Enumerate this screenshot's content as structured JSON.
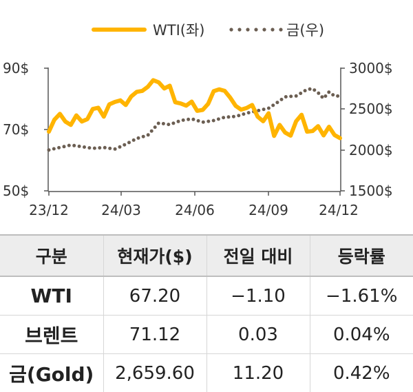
{
  "chart_data": {
    "type": "line",
    "legend": [
      "WTI(좌)",
      "금(우)"
    ],
    "legend_position": "top",
    "x_ticks": [
      "23/12",
      "24/03",
      "24/06",
      "24/09",
      "24/12"
    ],
    "y_left_ticks": [
      "90$",
      "70$",
      "50$"
    ],
    "y_right_ticks": [
      "3000$",
      "2500$",
      "2000$",
      "1500$"
    ],
    "y_left_range": [
      50,
      90
    ],
    "y_right_range": [
      1500,
      3000
    ],
    "x_range": [
      "2023-12-01",
      "2024-12-06"
    ],
    "colors": {
      "wti": "#ffb400",
      "gold": "#6b5e52"
    },
    "series": [
      {
        "name": "WTI(좌)",
        "axis": "left",
        "style": "solid",
        "x": [
          "2023-12-01",
          "2023-12-08",
          "2023-12-15",
          "2023-12-22",
          "2023-12-29",
          "2024-01-05",
          "2024-01-12",
          "2024-01-19",
          "2024-01-26",
          "2024-02-02",
          "2024-02-09",
          "2024-02-16",
          "2024-02-23",
          "2024-03-01",
          "2024-03-08",
          "2024-03-15",
          "2024-03-22",
          "2024-03-29",
          "2024-04-05",
          "2024-04-12",
          "2024-04-19",
          "2024-04-26",
          "2024-05-03",
          "2024-05-10",
          "2024-05-17",
          "2024-05-24",
          "2024-05-31",
          "2024-06-07",
          "2024-06-14",
          "2024-06-21",
          "2024-06-28",
          "2024-07-05",
          "2024-07-12",
          "2024-07-19",
          "2024-07-26",
          "2024-08-02",
          "2024-08-09",
          "2024-08-16",
          "2024-08-23",
          "2024-08-30",
          "2024-09-06",
          "2024-09-13",
          "2024-09-20",
          "2024-09-27",
          "2024-10-04",
          "2024-10-11",
          "2024-10-18",
          "2024-10-25",
          "2024-11-01",
          "2024-11-08",
          "2024-11-15",
          "2024-11-22",
          "2024-11-29",
          "2024-12-06"
        ],
        "values": [
          69.3,
          73.2,
          75.1,
          72.6,
          71.5,
          74.6,
          72.6,
          73.4,
          76.7,
          77.1,
          74.2,
          78.2,
          79.0,
          79.5,
          78.0,
          80.8,
          82.3,
          82.6,
          83.9,
          86.1,
          85.4,
          83.4,
          84.3,
          78.9,
          78.5,
          77.8,
          79.1,
          76.1,
          76.4,
          78.4,
          82.5,
          83.1,
          82.6,
          80.4,
          77.7,
          76.5,
          77.0,
          78.0,
          74.2,
          72.7,
          75.3,
          67.9,
          71.5,
          69.0,
          68.0,
          72.7,
          74.8,
          69.3,
          69.5,
          71.1,
          68.1,
          70.9,
          68.2,
          67.2
        ]
      },
      {
        "name": "금(우)",
        "axis": "right",
        "style": "dotted",
        "x": [
          "2023-12-01",
          "2023-12-15",
          "2023-12-29",
          "2024-01-12",
          "2024-01-26",
          "2024-02-09",
          "2024-02-23",
          "2024-03-08",
          "2024-03-22",
          "2024-04-05",
          "2024-04-19",
          "2024-05-03",
          "2024-05-17",
          "2024-05-31",
          "2024-06-14",
          "2024-06-28",
          "2024-07-12",
          "2024-07-26",
          "2024-08-09",
          "2024-08-23",
          "2024-09-06",
          "2024-09-20",
          "2024-09-27",
          "2024-10-11",
          "2024-10-18",
          "2024-10-25",
          "2024-11-01",
          "2024-11-08",
          "2024-11-15",
          "2024-11-22",
          "2024-11-29",
          "2024-12-06"
        ],
        "values": [
          2000,
          2030,
          2060,
          2040,
          2020,
          2030,
          2010,
          2070,
          2140,
          2180,
          2330,
          2310,
          2360,
          2380,
          2340,
          2360,
          2400,
          2410,
          2450,
          2480,
          2510,
          2600,
          2650,
          2660,
          2700,
          2740,
          2750,
          2700,
          2630,
          2710,
          2660,
          2659.6
        ]
      }
    ]
  },
  "table": {
    "headers": [
      "구분",
      "현재가($)",
      "전일 대비",
      "등락률"
    ],
    "rows": [
      [
        "WTI",
        "67.20",
        "−1.10",
        "−1.61%"
      ],
      [
        "브렌트",
        "71.12",
        "0.03",
        "0.04%"
      ],
      [
        "금(Gold)",
        "2,659.60",
        "11.20",
        "0.42%"
      ]
    ]
  }
}
